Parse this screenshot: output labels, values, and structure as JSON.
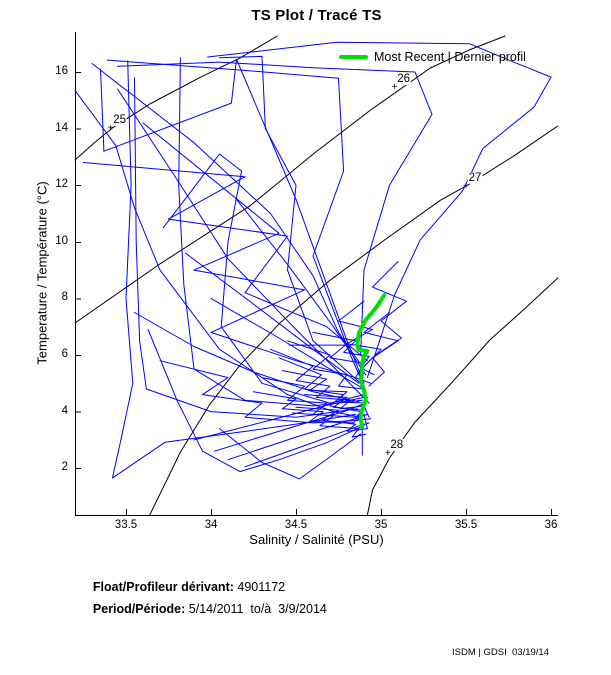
{
  "title": "TS Plot / Tracé TS",
  "legend": {
    "label": "Most Recent | Dernier profil"
  },
  "axes": {
    "x": {
      "label": "Salinity / Salinité (PSU)",
      "ticks": [
        33.5,
        34,
        34.5,
        35,
        35.5,
        36
      ],
      "tick_labels": [
        "33.5",
        "34",
        "34.5",
        "35",
        "35.5",
        "36"
      ]
    },
    "y": {
      "label": "Temperature / Température (°C)",
      "ticks": [
        2,
        4,
        6,
        8,
        10,
        12,
        14,
        16
      ],
      "tick_labels": [
        "2",
        "4",
        "6",
        "8",
        "10",
        "12",
        "14",
        "16"
      ]
    }
  },
  "footer": {
    "float_label": "Float/Profileur dérivant:",
    "float_value": " 4901172",
    "period_label": "Period/Période:",
    "period_value": " 5/14/2011  to/à  3/9/2014",
    "credit": "ISDM | GDSI  03/19/14"
  },
  "chart_data": {
    "type": "line",
    "title": "TS Plot / Tracé TS",
    "xlabel": "Salinity / Salinité (PSU)",
    "ylabel": "Temperature / Température (°C)",
    "xlim": [
      33.2,
      36.041
    ],
    "ylim": [
      0.346,
      17.413
    ],
    "grid": false,
    "legend_position": "top-right",
    "colors": {
      "profiles": "#0000ff",
      "most_recent": "#00dd00",
      "contours": "#000000"
    },
    "density_contours": [
      {
        "sigma_theta": "25",
        "label_at": [
          33.41,
          14.0
        ],
        "points": [
          [
            33.2,
            12.89
          ],
          [
            33.32,
            13.53
          ],
          [
            33.42,
            14.02
          ],
          [
            33.64,
            14.87
          ],
          [
            33.94,
            15.82
          ],
          [
            34.17,
            16.49
          ],
          [
            34.39,
            17.27
          ]
        ]
      },
      {
        "sigma_theta": "26",
        "label_at": [
          35.08,
          15.45
        ],
        "points": [
          [
            33.2,
            7.13
          ],
          [
            33.7,
            9.22
          ],
          [
            34.23,
            11.27
          ],
          [
            34.61,
            13.14
          ],
          [
            34.94,
            14.66
          ],
          [
            35.29,
            16.14
          ],
          [
            35.52,
            16.78
          ],
          [
            35.73,
            17.27
          ]
        ]
      },
      {
        "sigma_theta": "27",
        "label_at": [
          35.5,
          11.95
        ],
        "points": [
          [
            33.64,
            0.35
          ],
          [
            33.82,
            2.57
          ],
          [
            33.99,
            4.23
          ],
          [
            34.17,
            5.64
          ],
          [
            34.41,
            7.16
          ],
          [
            34.7,
            8.64
          ],
          [
            35.02,
            10.06
          ],
          [
            35.35,
            11.47
          ],
          [
            35.52,
            12.04
          ],
          [
            35.79,
            13.07
          ],
          [
            36.04,
            14.09
          ]
        ]
      },
      {
        "sigma_theta": "28",
        "label_at": [
          35.04,
          2.5
        ],
        "points": [
          [
            34.92,
            0.35
          ],
          [
            34.95,
            1.23
          ],
          [
            35.05,
            2.36
          ],
          [
            35.2,
            3.63
          ],
          [
            35.41,
            4.98
          ],
          [
            35.64,
            6.53
          ],
          [
            35.85,
            7.66
          ],
          [
            36.04,
            8.72
          ]
        ]
      }
    ],
    "most_recent_profile": [
      [
        35.02,
        8.12
      ],
      [
        34.97,
        7.66
      ],
      [
        34.91,
        7.24
      ],
      [
        34.87,
        6.78
      ],
      [
        34.86,
        6.35
      ],
      [
        34.87,
        6.18
      ],
      [
        34.92,
        6.14
      ],
      [
        34.9,
        5.96
      ],
      [
        34.89,
        5.75
      ],
      [
        34.89,
        5.4
      ],
      [
        34.88,
        5.12
      ],
      [
        34.9,
        4.76
      ],
      [
        34.91,
        4.41
      ],
      [
        34.89,
        4.06
      ],
      [
        34.88,
        3.77
      ],
      [
        34.89,
        3.45
      ]
    ],
    "profiles": [
      [
        [
          33.2,
          15.35
        ],
        [
          33.44,
          13.4
        ],
        [
          33.55,
          11.2
        ],
        [
          33.7,
          9.0
        ],
        [
          34.05,
          6.2
        ],
        [
          34.45,
          4.6
        ],
        [
          34.72,
          4.0
        ],
        [
          34.88,
          3.8
        ]
      ],
      [
        [
          33.39,
          16.42
        ],
        [
          34.17,
          16.07
        ],
        [
          34.75,
          15.78
        ],
        [
          34.78,
          12.5
        ],
        [
          34.6,
          9.5
        ],
        [
          34.82,
          6.0
        ],
        [
          34.9,
          4.9
        ]
      ],
      [
        [
          33.98,
          16.53
        ],
        [
          34.74,
          17.05
        ],
        [
          35.52,
          17.0
        ],
        [
          35.78,
          16.35
        ],
        [
          36.0,
          15.82
        ],
        [
          35.9,
          14.76
        ],
        [
          35.6,
          13.3
        ],
        [
          35.48,
          11.8
        ],
        [
          35.23,
          10.06
        ],
        [
          35.08,
          8.12
        ],
        [
          34.92,
          5.2
        ]
      ],
      [
        [
          33.51,
          16.4
        ],
        [
          33.53,
          12.0
        ],
        [
          33.5,
          8.0
        ],
        [
          33.54,
          5.0
        ],
        [
          33.47,
          3.0
        ],
        [
          33.42,
          1.65
        ],
        [
          33.73,
          2.92
        ],
        [
          34.2,
          3.3
        ],
        [
          34.55,
          3.6
        ],
        [
          34.85,
          3.9
        ]
      ],
      [
        [
          33.55,
          15.8
        ],
        [
          33.56,
          10.0
        ],
        [
          33.58,
          6.5
        ],
        [
          33.62,
          4.8
        ],
        [
          34.0,
          4.0
        ],
        [
          34.5,
          3.8
        ],
        [
          34.86,
          4.1
        ]
      ],
      [
        [
          33.82,
          16.5
        ],
        [
          33.81,
          12.0
        ],
        [
          33.84,
          8.5
        ],
        [
          33.9,
          5.5
        ],
        [
          34.2,
          4.4
        ],
        [
          34.6,
          4.2
        ],
        [
          34.89,
          4.4
        ]
      ],
      [
        [
          33.72,
          10.5
        ],
        [
          34.05,
          13.1
        ],
        [
          34.18,
          12.5
        ],
        [
          34.1,
          10.0
        ],
        [
          34.06,
          7.0
        ],
        [
          34.3,
          5.0
        ],
        [
          34.7,
          4.3
        ],
        [
          34.9,
          4.6
        ]
      ],
      [
        [
          34.05,
          16.5
        ],
        [
          34.3,
          16.55
        ],
        [
          34.32,
          14.0
        ],
        [
          34.5,
          12.0
        ],
        [
          34.45,
          9.0
        ],
        [
          34.6,
          6.5
        ],
        [
          34.88,
          5.0
        ]
      ],
      [
        [
          33.6,
          14.2
        ],
        [
          34.4,
          10.3
        ],
        [
          33.9,
          9.0
        ],
        [
          34.55,
          8.3
        ],
        [
          34.0,
          6.8
        ],
        [
          34.5,
          5.8
        ],
        [
          34.85,
          5.2
        ]
      ],
      [
        [
          33.3,
          16.3
        ],
        [
          33.9,
          13.5
        ],
        [
          34.35,
          11.0
        ],
        [
          34.6,
          8.8
        ],
        [
          34.75,
          6.8
        ],
        [
          34.9,
          5.5
        ]
      ],
      [
        [
          33.45,
          15.4
        ],
        [
          33.8,
          12.2
        ],
        [
          34.1,
          9.4
        ],
        [
          34.5,
          6.9
        ],
        [
          34.8,
          5.1
        ],
        [
          34.93,
          4.3
        ]
      ],
      [
        [
          33.25,
          12.8
        ],
        [
          34.2,
          12.3
        ],
        [
          33.75,
          10.8
        ],
        [
          34.45,
          10.2
        ],
        [
          34.2,
          8.2
        ],
        [
          34.68,
          7.0
        ],
        [
          34.92,
          5.8
        ]
      ],
      [
        [
          33.63,
          6.9
        ],
        [
          33.8,
          4.4
        ],
        [
          33.95,
          2.6
        ],
        [
          34.17,
          1.88
        ],
        [
          34.4,
          2.3
        ],
        [
          34.68,
          2.9
        ],
        [
          34.9,
          3.5
        ]
      ],
      [
        [
          34.05,
          3.4
        ],
        [
          34.3,
          2.2
        ],
        [
          34.52,
          1.62
        ],
        [
          34.7,
          2.4
        ],
        [
          34.88,
          3.2
        ]
      ],
      [
        [
          34.02,
          2.6
        ],
        [
          34.45,
          3.4
        ],
        [
          34.78,
          4.0
        ],
        [
          34.91,
          4.3
        ]
      ],
      [
        [
          34.1,
          2.3
        ],
        [
          34.5,
          3.1
        ],
        [
          34.82,
          3.7
        ],
        [
          34.92,
          3.9
        ]
      ],
      [
        [
          34.2,
          2.05
        ],
        [
          34.55,
          2.8
        ],
        [
          34.85,
          3.45
        ],
        [
          34.93,
          3.6
        ]
      ],
      [
        [
          33.9,
          3.0
        ],
        [
          34.35,
          3.7
        ],
        [
          34.7,
          4.25
        ],
        [
          34.9,
          4.5
        ]
      ],
      [
        [
          34.35,
          6.2
        ],
        [
          34.6,
          5.6
        ],
        [
          34.5,
          5.1
        ],
        [
          34.7,
          4.9
        ],
        [
          34.62,
          4.5
        ],
        [
          34.82,
          4.4
        ],
        [
          34.76,
          4.1
        ],
        [
          34.9,
          4.2
        ],
        [
          34.93,
          3.8
        ]
      ],
      [
        [
          34.4,
          5.9
        ],
        [
          34.65,
          5.3
        ],
        [
          34.55,
          4.8
        ],
        [
          34.78,
          4.6
        ],
        [
          34.7,
          4.2
        ],
        [
          34.88,
          4.0
        ],
        [
          34.92,
          4.5
        ]
      ],
      [
        [
          34.3,
          5.2
        ],
        [
          34.55,
          4.9
        ],
        [
          34.45,
          4.4
        ],
        [
          34.68,
          4.3
        ],
        [
          34.6,
          3.9
        ],
        [
          34.85,
          3.8
        ],
        [
          34.9,
          4.1
        ]
      ],
      [
        [
          34.45,
          6.5
        ],
        [
          34.7,
          6.0
        ],
        [
          34.6,
          5.5
        ],
        [
          34.8,
          5.3
        ],
        [
          34.75,
          4.9
        ],
        [
          34.9,
          4.8
        ],
        [
          34.87,
          5.4
        ],
        [
          34.95,
          5.9
        ]
      ],
      [
        [
          34.46,
          6.35
        ],
        [
          34.79,
          6.35
        ],
        [
          34.7,
          5.9
        ],
        [
          34.9,
          5.7
        ],
        [
          34.85,
          5.2
        ],
        [
          34.94,
          5.0
        ]
      ],
      [
        [
          34.9,
          7.9
        ],
        [
          34.75,
          7.2
        ],
        [
          34.95,
          6.9
        ],
        [
          34.8,
          6.4
        ],
        [
          35.0,
          6.2
        ],
        [
          34.9,
          5.6
        ]
      ],
      [
        [
          35.05,
          7.5
        ],
        [
          34.9,
          6.8
        ],
        [
          35.1,
          6.5
        ],
        [
          34.95,
          5.9
        ],
        [
          35.02,
          5.4
        ],
        [
          34.93,
          4.9
        ]
      ],
      [
        [
          34.0,
          8.0
        ],
        [
          34.4,
          6.6
        ],
        [
          34.7,
          5.5
        ],
        [
          34.9,
          4.8
        ]
      ],
      [
        [
          33.85,
          9.6
        ],
        [
          34.25,
          7.8
        ],
        [
          34.6,
          6.2
        ],
        [
          34.87,
          5.0
        ]
      ],
      [
        [
          34.15,
          11.5
        ],
        [
          34.45,
          9.2
        ],
        [
          34.72,
          7.0
        ],
        [
          34.91,
          5.3
        ]
      ],
      [
        [
          33.35,
          16.1
        ],
        [
          33.37,
          13.2
        ],
        [
          34.12,
          14.9
        ],
        [
          34.15,
          16.45
        ],
        [
          34.5,
          11.5
        ],
        [
          34.8,
          6.5
        ],
        [
          34.9,
          5.0
        ]
      ],
      [
        [
          33.7,
          5.8
        ],
        [
          34.1,
          5.2
        ],
        [
          33.95,
          4.6
        ],
        [
          34.3,
          4.3
        ],
        [
          34.2,
          3.8
        ],
        [
          34.6,
          3.6
        ],
        [
          34.88,
          3.7
        ]
      ],
      [
        [
          33.55,
          7.5
        ],
        [
          33.9,
          6.3
        ],
        [
          34.25,
          5.4
        ],
        [
          34.6,
          4.7
        ],
        [
          34.87,
          4.35
        ]
      ],
      [
        [
          34.5,
          4.15
        ],
        [
          34.75,
          4.05
        ],
        [
          34.65,
          3.7
        ],
        [
          34.85,
          3.55
        ],
        [
          34.8,
          3.3
        ],
        [
          34.92,
          3.4
        ],
        [
          34.9,
          3.9
        ]
      ],
      [
        [
          34.55,
          4.6
        ],
        [
          34.8,
          4.5
        ],
        [
          34.72,
          4.15
        ],
        [
          34.9,
          4.05
        ],
        [
          34.86,
          3.7
        ],
        [
          34.94,
          3.75
        ]
      ],
      [
        [
          34.89,
          3.45
        ],
        [
          34.89,
          2.46
        ]
      ],
      [
        [
          35.1,
          9.3
        ],
        [
          34.95,
          8.4
        ],
        [
          35.15,
          7.9
        ],
        [
          35.0,
          7.2
        ],
        [
          35.12,
          6.6
        ],
        [
          34.97,
          6.0
        ]
      ],
      [
        [
          33.45,
          16.2
        ],
        [
          34.05,
          16.35
        ],
        [
          34.6,
          16.15
        ],
        [
          35.2,
          16.0
        ],
        [
          35.3,
          14.5
        ],
        [
          35.05,
          12.0
        ],
        [
          34.9,
          9.0
        ],
        [
          34.88,
          6.0
        ]
      ],
      [
        [
          34.42,
          5.45
        ],
        [
          34.68,
          5.15
        ],
        [
          34.58,
          4.75
        ],
        [
          34.8,
          4.7
        ],
        [
          34.73,
          4.35
        ],
        [
          34.91,
          4.3
        ]
      ],
      [
        [
          34.48,
          3.95
        ],
        [
          34.72,
          3.85
        ],
        [
          34.64,
          3.5
        ],
        [
          34.87,
          3.4
        ],
        [
          34.83,
          3.1
        ],
        [
          34.91,
          3.2
        ]
      ],
      [
        [
          34.25,
          4.7
        ],
        [
          34.5,
          4.45
        ],
        [
          34.42,
          4.1
        ],
        [
          34.66,
          4.0
        ],
        [
          34.58,
          3.65
        ],
        [
          34.84,
          3.6
        ],
        [
          34.88,
          3.95
        ]
      ],
      [
        [
          34.6,
          6.8
        ],
        [
          34.85,
          6.5
        ],
        [
          34.78,
          6.1
        ],
        [
          34.93,
          5.95
        ],
        [
          34.88,
          5.55
        ],
        [
          34.96,
          5.3
        ]
      ]
    ]
  }
}
